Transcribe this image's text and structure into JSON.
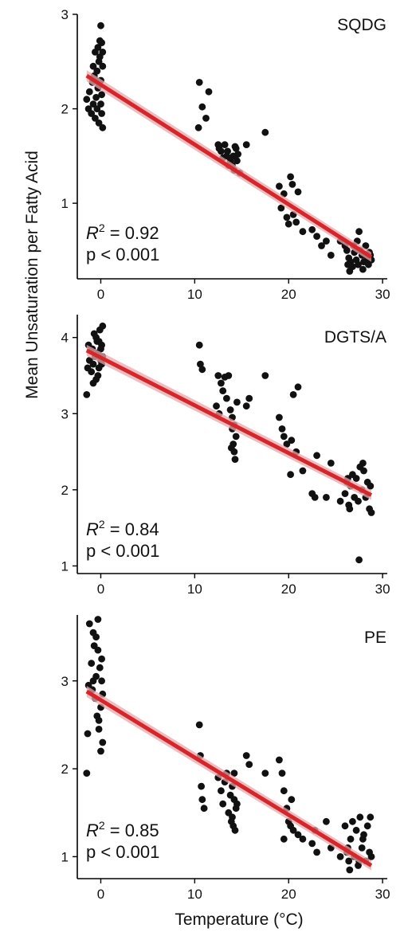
{
  "chart_data": {
    "type": "scatter",
    "xlabel": "Temperature (°C)",
    "ylabel": "Mean Unsaturation per Fatty Acid",
    "xticks": [
      0,
      10,
      20,
      30
    ],
    "xlim": [
      -2.5,
      30.5
    ],
    "panels": [
      {
        "title": "SQDG",
        "r2_label": "R",
        "r2_sup": "2",
        "r2_value": " = 0.92",
        "p_text": "p < 0.001",
        "ylim": [
          0.2,
          3.0
        ],
        "yticks": [
          1,
          2,
          3
        ],
        "fit": {
          "x": [
            -1.5,
            28.8
          ],
          "y": [
            2.35,
            0.43
          ],
          "color": "#d7262b",
          "band_color": "#e8a7a9"
        },
        "points": [
          [
            -1.5,
            2.1
          ],
          [
            -1.3,
            2.0
          ],
          [
            -1.2,
            2.18
          ],
          [
            -1.0,
            1.95
          ],
          [
            -0.9,
            2.28
          ],
          [
            -0.8,
            2.05
          ],
          [
            -0.7,
            2.35
          ],
          [
            -0.6,
            1.9
          ],
          [
            -0.5,
            2.12
          ],
          [
            -0.4,
            2.4
          ],
          [
            -0.3,
            2.22
          ],
          [
            -0.2,
            1.85
          ],
          [
            -0.1,
            2.55
          ],
          [
            0.0,
            2.05
          ],
          [
            0.1,
            2.7
          ],
          [
            0.2,
            1.8
          ],
          [
            -0.3,
            2.65
          ],
          [
            0.0,
            2.3
          ],
          [
            -0.2,
            2.5
          ],
          [
            0.1,
            2.15
          ],
          [
            -0.4,
            2.0
          ],
          [
            0.2,
            2.45
          ],
          [
            0.0,
            2.88
          ],
          [
            -0.1,
            2.72
          ],
          [
            -0.6,
            2.6
          ],
          [
            -0.8,
            2.45
          ],
          [
            0.1,
            1.95
          ],
          [
            -0.2,
            2.25
          ],
          [
            0.2,
            2.6
          ],
          [
            -0.5,
            2.3
          ],
          [
            10.5,
            2.28
          ],
          [
            11.5,
            2.18
          ],
          [
            10.8,
            2.02
          ],
          [
            11.2,
            1.9
          ],
          [
            10.4,
            1.8
          ],
          [
            12.5,
            1.62
          ],
          [
            12.8,
            1.55
          ],
          [
            13.0,
            1.48
          ],
          [
            13.2,
            1.62
          ],
          [
            13.5,
            1.55
          ],
          [
            13.8,
            1.45
          ],
          [
            14.0,
            1.4
          ],
          [
            14.2,
            1.35
          ],
          [
            14.4,
            1.58
          ],
          [
            14.6,
            1.52
          ],
          [
            14.8,
            1.32
          ],
          [
            13.6,
            1.4
          ],
          [
            14.1,
            1.5
          ],
          [
            15.5,
            1.62
          ],
          [
            17.5,
            1.75
          ],
          [
            14.3,
            1.6
          ],
          [
            13.4,
            1.5
          ],
          [
            12.6,
            1.58
          ],
          [
            14.5,
            1.45
          ],
          [
            19.0,
            1.18
          ],
          [
            19.5,
            1.1
          ],
          [
            20.2,
            1.28
          ],
          [
            20.4,
            1.2
          ],
          [
            21.0,
            1.12
          ],
          [
            19.8,
            0.85
          ],
          [
            20.0,
            0.78
          ],
          [
            20.5,
            0.88
          ],
          [
            19.2,
            0.95
          ],
          [
            20.8,
            0.8
          ],
          [
            21.5,
            0.7
          ],
          [
            22.5,
            0.72
          ],
          [
            23.0,
            0.65
          ],
          [
            24.0,
            0.6
          ],
          [
            23.5,
            0.55
          ],
          [
            24.5,
            0.45
          ],
          [
            25.5,
            0.6
          ],
          [
            26.0,
            0.55
          ],
          [
            26.2,
            0.5
          ],
          [
            26.4,
            0.42
          ],
          [
            26.6,
            0.38
          ],
          [
            26.8,
            0.33
          ],
          [
            27.0,
            0.48
          ],
          [
            27.2,
            0.4
          ],
          [
            27.4,
            0.35
          ],
          [
            27.6,
            0.5
          ],
          [
            27.8,
            0.45
          ],
          [
            28.0,
            0.38
          ],
          [
            28.2,
            0.55
          ],
          [
            28.4,
            0.42
          ],
          [
            28.6,
            0.48
          ],
          [
            28.8,
            0.4
          ],
          [
            27.5,
            0.7
          ],
          [
            26.5,
            0.28
          ],
          [
            27.9,
            0.3
          ],
          [
            28.5,
            0.35
          ],
          [
            26.9,
            0.55
          ],
          [
            27.3,
            0.6
          ],
          [
            28.7,
            0.45
          ],
          [
            26.3,
            0.35
          ]
        ]
      },
      {
        "title": "DGTS/A",
        "r2_label": "R",
        "r2_sup": "2",
        "r2_value": " = 0.84",
        "p_text": "p < 0.001",
        "ylim": [
          0.9,
          4.3
        ],
        "yticks": [
          1,
          2,
          3,
          4
        ],
        "fit": {
          "x": [
            -1.5,
            28.8
          ],
          "y": [
            3.83,
            1.93
          ],
          "color": "#d7262b",
          "band_color": "#e8a7a9"
        },
        "points": [
          [
            -1.5,
            3.25
          ],
          [
            -1.4,
            3.6
          ],
          [
            -1.2,
            3.7
          ],
          [
            -1.0,
            3.55
          ],
          [
            -0.9,
            3.85
          ],
          [
            -0.8,
            3.65
          ],
          [
            -0.7,
            4.05
          ],
          [
            -0.6,
            3.75
          ],
          [
            -0.5,
            3.45
          ],
          [
            -0.4,
            3.95
          ],
          [
            -0.3,
            3.8
          ],
          [
            -0.2,
            3.6
          ],
          [
            -0.1,
            4.1
          ],
          [
            0.0,
            3.7
          ],
          [
            0.1,
            3.9
          ],
          [
            0.2,
            4.15
          ],
          [
            -0.3,
            3.5
          ],
          [
            0.0,
            3.85
          ],
          [
            -0.8,
            3.4
          ],
          [
            0.2,
            3.75
          ],
          [
            -0.5,
            4.0
          ],
          [
            -1.3,
            3.9
          ],
          [
            0.1,
            3.65
          ],
          [
            -0.2,
            3.95
          ],
          [
            10.5,
            3.9
          ],
          [
            10.6,
            3.65
          ],
          [
            10.8,
            3.58
          ],
          [
            12.5,
            3.5
          ],
          [
            12.8,
            3.4
          ],
          [
            13.0,
            3.3
          ],
          [
            13.2,
            3.48
          ],
          [
            13.4,
            3.2
          ],
          [
            13.6,
            3.5
          ],
          [
            12.3,
            3.1
          ],
          [
            12.6,
            3.0
          ],
          [
            13.8,
            3.05
          ],
          [
            14.0,
            2.8
          ],
          [
            14.1,
            2.6
          ],
          [
            14.2,
            2.5
          ],
          [
            14.3,
            2.4
          ],
          [
            14.0,
            2.95
          ],
          [
            14.4,
            2.7
          ],
          [
            14.2,
            2.85
          ],
          [
            13.9,
            2.55
          ],
          [
            14.5,
            3.15
          ],
          [
            15.5,
            3.1
          ],
          [
            15.8,
            3.2
          ],
          [
            17.5,
            3.5
          ],
          [
            19.0,
            2.95
          ],
          [
            19.3,
            2.8
          ],
          [
            19.5,
            2.7
          ],
          [
            19.8,
            2.6
          ],
          [
            20.3,
            2.65
          ],
          [
            20.5,
            3.25
          ],
          [
            21.0,
            3.35
          ],
          [
            20.8,
            2.5
          ],
          [
            20.2,
            2.2
          ],
          [
            21.5,
            2.25
          ],
          [
            22.5,
            1.95
          ],
          [
            22.8,
            1.9
          ],
          [
            23.0,
            2.45
          ],
          [
            24.0,
            1.9
          ],
          [
            24.5,
            2.35
          ],
          [
            25.5,
            1.85
          ],
          [
            26.0,
            1.95
          ],
          [
            26.2,
            2.1
          ],
          [
            26.4,
            1.8
          ],
          [
            26.6,
            2.05
          ],
          [
            26.8,
            2.2
          ],
          [
            27.0,
            1.9
          ],
          [
            27.2,
            2.15
          ],
          [
            27.4,
            1.85
          ],
          [
            27.6,
            2.3
          ],
          [
            27.8,
            2.0
          ],
          [
            28.0,
            2.25
          ],
          [
            28.2,
            1.9
          ],
          [
            28.4,
            2.1
          ],
          [
            28.6,
            1.75
          ],
          [
            28.8,
            1.7
          ],
          [
            27.5,
            1.08
          ],
          [
            26.5,
            1.75
          ],
          [
            27.9,
            2.35
          ],
          [
            28.7,
            2.05
          ],
          [
            26.3,
            2.15
          ]
        ]
      },
      {
        "title": "PE",
        "r2_label": "R",
        "r2_sup": "2",
        "r2_value": " = 0.85",
        "p_text": "p < 0.001",
        "ylim": [
          0.75,
          3.75
        ],
        "yticks": [
          1,
          2,
          3
        ],
        "fit": {
          "x": [
            -1.5,
            28.8
          ],
          "y": [
            2.88,
            0.9
          ],
          "color": "#d7262b",
          "band_color": "#e8a7a9"
        },
        "points": [
          [
            -1.5,
            1.95
          ],
          [
            -1.4,
            2.4
          ],
          [
            -1.2,
            3.65
          ],
          [
            -1.0,
            3.2
          ],
          [
            -0.9,
            2.9
          ],
          [
            -0.8,
            3.55
          ],
          [
            -0.7,
            3.4
          ],
          [
            -0.6,
            2.8
          ],
          [
            -0.5,
            3.05
          ],
          [
            -0.4,
            2.6
          ],
          [
            -0.3,
            3.35
          ],
          [
            -0.2,
            2.45
          ],
          [
            -0.1,
            3.15
          ],
          [
            0.0,
            2.7
          ],
          [
            0.1,
            3.0
          ],
          [
            0.2,
            2.3
          ],
          [
            -0.3,
            3.7
          ],
          [
            0.0,
            2.2
          ],
          [
            -0.8,
            3.0
          ],
          [
            0.2,
            2.85
          ],
          [
            -0.5,
            3.5
          ],
          [
            -1.3,
            2.95
          ],
          [
            0.1,
            3.25
          ],
          [
            -0.2,
            2.55
          ],
          [
            10.5,
            2.5
          ],
          [
            10.6,
            2.15
          ],
          [
            10.7,
            1.8
          ],
          [
            10.8,
            1.65
          ],
          [
            11.0,
            1.55
          ],
          [
            12.5,
            1.9
          ],
          [
            12.8,
            1.75
          ],
          [
            13.0,
            1.6
          ],
          [
            13.2,
            1.85
          ],
          [
            13.4,
            1.95
          ],
          [
            13.6,
            1.5
          ],
          [
            13.8,
            1.7
          ],
          [
            14.0,
            1.45
          ],
          [
            14.1,
            1.35
          ],
          [
            14.2,
            1.65
          ],
          [
            14.3,
            1.3
          ],
          [
            14.0,
            1.8
          ],
          [
            14.4,
            1.55
          ],
          [
            14.2,
            1.95
          ],
          [
            13.9,
            1.4
          ],
          [
            14.5,
            1.6
          ],
          [
            15.5,
            2.15
          ],
          [
            15.8,
            2.05
          ],
          [
            17.5,
            1.95
          ],
          [
            19.0,
            2.1
          ],
          [
            19.3,
            1.95
          ],
          [
            19.5,
            1.75
          ],
          [
            19.8,
            1.55
          ],
          [
            20.0,
            1.4
          ],
          [
            20.3,
            1.65
          ],
          [
            20.5,
            1.3
          ],
          [
            21.0,
            1.25
          ],
          [
            19.5,
            1.2
          ],
          [
            20.2,
            1.35
          ],
          [
            21.5,
            1.2
          ],
          [
            22.5,
            1.15
          ],
          [
            22.8,
            1.3
          ],
          [
            23.0,
            1.05
          ],
          [
            24.0,
            1.4
          ],
          [
            24.5,
            1.1
          ],
          [
            25.5,
            1.0
          ],
          [
            26.0,
            1.35
          ],
          [
            26.2,
            1.05
          ],
          [
            26.4,
            0.95
          ],
          [
            26.6,
            1.2
          ],
          [
            26.8,
            1.4
          ],
          [
            27.0,
            1.0
          ],
          [
            27.2,
            1.3
          ],
          [
            27.4,
            0.9
          ],
          [
            27.6,
            1.45
          ],
          [
            27.8,
            1.1
          ],
          [
            28.0,
            1.25
          ],
          [
            28.2,
            0.95
          ],
          [
            28.4,
            1.35
          ],
          [
            28.6,
            1.05
          ],
          [
            28.8,
            1.0
          ],
          [
            26.5,
            0.85
          ],
          [
            27.9,
            1.2
          ],
          [
            28.7,
            1.45
          ],
          [
            26.3,
            1.1
          ],
          [
            27.5,
            0.95
          ]
        ]
      }
    ]
  }
}
